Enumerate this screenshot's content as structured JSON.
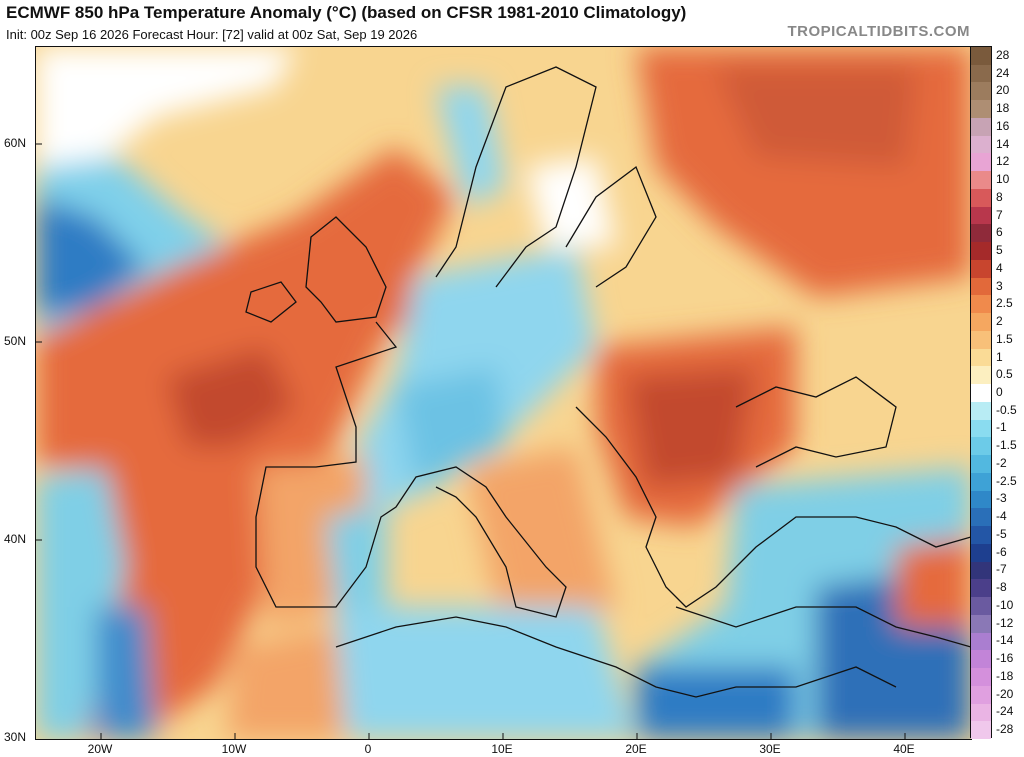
{
  "header": {
    "title": "ECMWF 850 hPa Temperature Anomaly (°C) (based on CFSR 1981-2010 Climatology)",
    "subtitle": "Init: 00z Sep 16 2026   Forecast Hour: [72]   valid at 00z Sat, Sep 19 2026",
    "brand": "TROPICALTIDBITS.COM"
  },
  "map": {
    "lat_labels": [
      "60N",
      "50N",
      "40N",
      "30N"
    ],
    "lon_labels": [
      "20W",
      "10W",
      "0",
      "10E",
      "20E",
      "30E",
      "40E"
    ],
    "colors": {
      "ocean_warm": "#e8794a",
      "strong_warm": "#c24a2f",
      "cold": "#6ec7e8",
      "strong_cold": "#2b6fb8",
      "neutral": "#ffffff"
    }
  },
  "colorbar": {
    "labels": [
      "28",
      "24",
      "20",
      "18",
      "16",
      "14",
      "12",
      "10",
      "8",
      "7",
      "6",
      "5",
      "4",
      "3",
      "2.5",
      "2",
      "1.5",
      "1",
      "0.5",
      "0",
      "-0.5",
      "-1",
      "-1.5",
      "-2",
      "-2.5",
      "-3",
      "-4",
      "-5",
      "-6",
      "-7",
      "-8",
      "-10",
      "-12",
      "-14",
      "-16",
      "-18",
      "-20",
      "-24",
      "-28"
    ],
    "colors": [
      "#7a5a3c",
      "#8a6a4c",
      "#9c7c5e",
      "#ae8e73",
      "#c7a3b4",
      "#dcb0cf",
      "#e8a4d4",
      "#ea8a8a",
      "#d8595a",
      "#b8374c",
      "#8f2a3a",
      "#a52a2a",
      "#c8452e",
      "#e2693a",
      "#f08a4c",
      "#f5a760",
      "#f8c079",
      "#fadb96",
      "#fcefc0",
      "#ffffff",
      "#b8ecf4",
      "#8adcf0",
      "#6ccbe8",
      "#52b8e0",
      "#3ea2d6",
      "#2f88c8",
      "#2a6fb8",
      "#2356a6",
      "#1e3f8f",
      "#32357a",
      "#4b3f8a",
      "#6a5aa0",
      "#8a78b6",
      "#aa7ed0",
      "#c284d8",
      "#d490dc",
      "#e0a0e0",
      "#eab4e4",
      "#f0c8ec"
    ]
  }
}
